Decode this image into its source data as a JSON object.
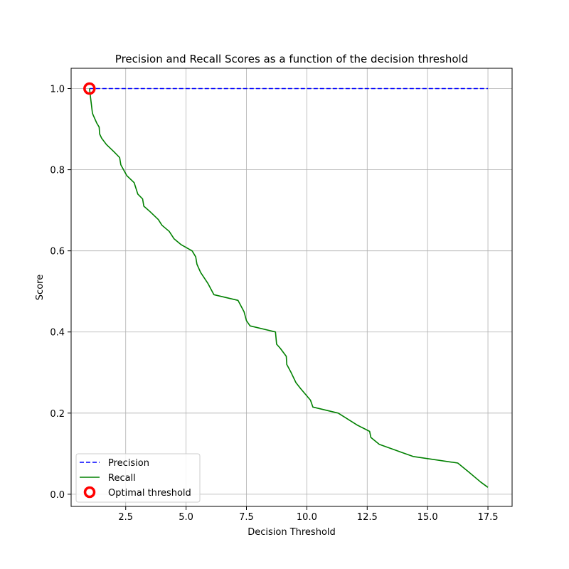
{
  "chart_data": {
    "type": "line",
    "title": "Precision and Recall Scores as a function of the decision threshold",
    "xlabel": "Decision Threshold",
    "ylabel": "Score",
    "xlim": [
      0.24,
      18.5
    ],
    "ylim": [
      -0.03,
      1.05
    ],
    "xticks": [
      2.5,
      5.0,
      7.5,
      10.0,
      12.5,
      15.0,
      17.5
    ],
    "xtick_labels": [
      "2.5",
      "5.0",
      "7.5",
      "10.0",
      "12.5",
      "15.0",
      "17.5"
    ],
    "yticks": [
      0.0,
      0.2,
      0.4,
      0.6,
      0.8,
      1.0
    ],
    "ytick_labels": [
      "0.0",
      "0.2",
      "0.4",
      "0.6",
      "0.8",
      "1.0"
    ],
    "grid": true,
    "legend_position": "lower-left",
    "series": [
      {
        "name": "Precision",
        "style": "dashed",
        "color": "#0000ff",
        "x": [
          1.0,
          17.5
        ],
        "y": [
          1.0,
          1.0
        ]
      },
      {
        "name": "Recall",
        "style": "solid",
        "color": "#008000",
        "x": [
          1.0,
          1.12,
          1.15,
          1.3,
          1.4,
          1.42,
          1.5,
          1.7,
          2.0,
          2.25,
          2.3,
          2.55,
          2.85,
          3.0,
          3.2,
          3.25,
          3.5,
          3.85,
          4.0,
          4.3,
          4.5,
          4.8,
          5.25,
          5.4,
          5.45,
          5.6,
          5.9,
          6.15,
          7.15,
          7.4,
          7.5,
          7.65,
          8.7,
          8.75,
          8.9,
          9.15,
          9.17,
          9.35,
          9.55,
          9.75,
          10.15,
          10.25,
          11.3,
          12.1,
          12.6,
          12.65,
          13.0,
          13.7,
          14.4,
          16.25,
          16.7,
          17.2,
          17.5
        ],
        "y": [
          1.0,
          0.94,
          0.935,
          0.915,
          0.905,
          0.888,
          0.878,
          0.862,
          0.845,
          0.83,
          0.812,
          0.785,
          0.768,
          0.74,
          0.728,
          0.71,
          0.697,
          0.677,
          0.663,
          0.648,
          0.63,
          0.615,
          0.6,
          0.585,
          0.567,
          0.547,
          0.52,
          0.492,
          0.478,
          0.45,
          0.428,
          0.415,
          0.4,
          0.37,
          0.36,
          0.34,
          0.32,
          0.3,
          0.275,
          0.26,
          0.232,
          0.215,
          0.2,
          0.17,
          0.155,
          0.14,
          0.123,
          0.108,
          0.093,
          0.077,
          0.055,
          0.03,
          0.017
        ]
      }
    ],
    "markers": [
      {
        "name": "Optimal threshold",
        "color": "#ff0000",
        "shape": "hollow-circle",
        "x": 1.0,
        "y": 1.0
      }
    ]
  }
}
